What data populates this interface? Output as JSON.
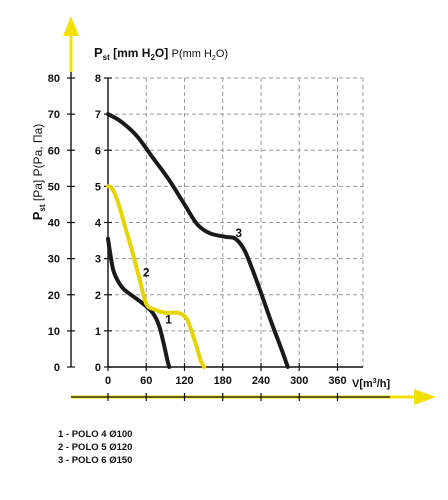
{
  "chart_data": {
    "type": "line",
    "ylabel_left": "P_st [Pa] P(Pa, Πa)",
    "ylabel_left_parts": {
      "main": "P",
      "sub": "st",
      "rest": " [Pa] P(Pa, Πa)"
    },
    "ylabel_right": "P_st [mm H2O] P(mm H2O)",
    "ylabel_right_parts": {
      "main": "P",
      "sub": "st",
      "a": " [mm H",
      "sub2": "2",
      "b": "O] ",
      "c": "P(mm H",
      "sub3": "2",
      "d": "O)"
    },
    "xlabel": "V[m³/h]",
    "xlabel_parts": {
      "a": "V[m",
      "sup": "3",
      "b": "/h]"
    },
    "xlim": [
      0,
      400
    ],
    "ylim": [
      0,
      80
    ],
    "x_ticks": [
      "0",
      "60",
      "120",
      "180",
      "240",
      "300",
      "360"
    ],
    "x_tick_values": [
      0,
      60,
      120,
      180,
      240,
      300,
      360
    ],
    "y_ticks_pa": [
      "0",
      "10",
      "20",
      "30",
      "40",
      "50",
      "60",
      "70",
      "80"
    ],
    "y_ticks_pa_values": [
      0,
      10,
      20,
      30,
      40,
      50,
      60,
      70,
      80
    ],
    "y_ticks_mmh2o": [
      "0",
      "1",
      "2",
      "3",
      "4",
      "5",
      "6",
      "7",
      "8"
    ],
    "grid": true,
    "axis_color": "#f2e000",
    "series": [
      {
        "name": "1",
        "legend": "1 - POLO 4 Ø100",
        "color": "#1a1a1a",
        "x": [
          0,
          3,
          8,
          15,
          25,
          40,
          55,
          70,
          80,
          88,
          93,
          96
        ],
        "y": [
          35.5,
          32,
          27,
          24,
          21.5,
          19.5,
          17.5,
          15,
          11.5,
          6,
          2,
          0
        ]
      },
      {
        "name": "2",
        "legend": "2 - POLO 5 Ø120",
        "color": "#e6d400",
        "x": [
          0,
          6,
          15,
          25,
          38,
          50,
          60,
          72,
          90,
          110,
          123,
          132,
          140,
          146,
          151
        ],
        "y": [
          50,
          49.5,
          46,
          40,
          32,
          24,
          17.5,
          16,
          15,
          15,
          13.5,
          9.5,
          5,
          1.5,
          0
        ]
      },
      {
        "name": "3",
        "legend": "3 - POLO 6 Ø150",
        "color": "#1a1a1a",
        "x": [
          0,
          20,
          45,
          70,
          95,
          120,
          140,
          160,
          185,
          200,
          215,
          235,
          255,
          272,
          282
        ],
        "y": [
          70,
          68,
          64,
          58,
          52,
          45,
          39.5,
          37,
          36,
          35.5,
          32,
          23,
          13,
          5,
          0
        ]
      }
    ],
    "curve_labels": [
      {
        "text": "1",
        "x": 95,
        "y": 12
      },
      {
        "text": "2",
        "x": 60,
        "y": 25
      },
      {
        "text": "3",
        "x": 205,
        "y": 36
      }
    ]
  },
  "legend_items": [
    "1 - POLO 4 Ø100",
    "2 - POLO 5 Ø120",
    "3 - POLO 6 Ø150"
  ]
}
